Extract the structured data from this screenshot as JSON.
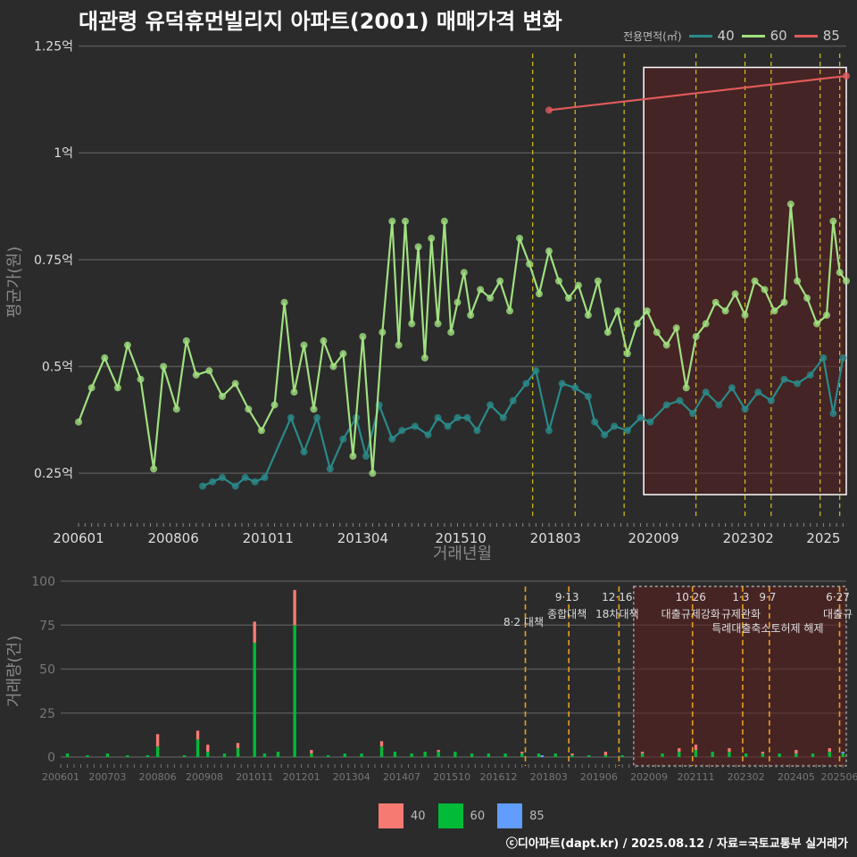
{
  "title": "대관령 유덕휴먼빌리지 아파트(2001) 매매가격 변화",
  "credit": "ⓒ디아파트(dapt.kr) / 2025.08.12 / 자료=국토교통부 실거래가",
  "colors": {
    "s40": "#2a8a8a",
    "s60": "#a0e080",
    "s85": "#e05a5a",
    "bar40": "#f77a72",
    "bar60": "#00ba38",
    "bar85": "#619cff",
    "policy": "#d4c21a",
    "policy_bottom": "#e8a020",
    "highlight": "#5a1f1f"
  },
  "legend_top": {
    "title": "전용면적(㎡)",
    "items": [
      "40",
      "60",
      "85"
    ]
  },
  "legend_bottom": {
    "items": [
      "40",
      "60",
      "85"
    ]
  },
  "chart_data": [
    {
      "type": "line",
      "ylabel": "평균가(원)",
      "xlabel": "거래년월",
      "ylim": [
        0.15,
        1.27
      ],
      "yticks": [
        0.25,
        0.5,
        0.75,
        1.0,
        1.25
      ],
      "ytick_labels": [
        "0.25억",
        "0.5억",
        "0.75억",
        "1억",
        "1.25억"
      ],
      "xlim": [
        "2006-01",
        "2025-08"
      ],
      "xtick_labels": [
        "200601",
        "200806",
        "201011",
        "201304",
        "201510",
        "201803",
        "202009",
        "202302",
        "2025"
      ],
      "policy_dates": [
        "2017-08",
        "2018-09",
        "2019-12",
        "2021-10",
        "2023-01",
        "2023-09",
        "2024-12",
        "2025-06"
      ],
      "highlight": [
        "2020-06",
        "2025-08"
      ],
      "series": [
        {
          "name": "40",
          "points": [
            [
              "2009-03",
              0.22
            ],
            [
              "2009-06",
              0.23
            ],
            [
              "2009-09",
              0.24
            ],
            [
              "2010-01",
              0.22
            ],
            [
              "2010-04",
              0.24
            ],
            [
              "2010-07",
              0.23
            ],
            [
              "2010-10",
              0.24
            ],
            [
              "2011-06",
              0.38
            ],
            [
              "2011-10",
              0.3
            ],
            [
              "2012-02",
              0.38
            ],
            [
              "2012-06",
              0.26
            ],
            [
              "2012-10",
              0.33
            ],
            [
              "2013-02",
              0.38
            ],
            [
              "2013-05",
              0.29
            ],
            [
              "2013-09",
              0.41
            ],
            [
              "2014-01",
              0.33
            ],
            [
              "2014-04",
              0.35
            ],
            [
              "2014-08",
              0.36
            ],
            [
              "2014-12",
              0.34
            ],
            [
              "2015-03",
              0.38
            ],
            [
              "2015-06",
              0.36
            ],
            [
              "2015-09",
              0.38
            ],
            [
              "2015-12",
              0.38
            ],
            [
              "2016-03",
              0.35
            ],
            [
              "2016-07",
              0.41
            ],
            [
              "2016-11",
              0.38
            ],
            [
              "2017-02",
              0.42
            ],
            [
              "2017-06",
              0.46
            ],
            [
              "2017-09",
              0.49
            ],
            [
              "2018-01",
              0.35
            ],
            [
              "2018-05",
              0.46
            ],
            [
              "2018-09",
              0.45
            ],
            [
              "2019-01",
              0.43
            ],
            [
              "2019-03",
              0.37
            ],
            [
              "2019-06",
              0.34
            ],
            [
              "2019-09",
              0.36
            ],
            [
              "2020-01",
              0.35
            ],
            [
              "2020-05",
              0.38
            ],
            [
              "2020-08",
              0.37
            ],
            [
              "2021-01",
              0.41
            ],
            [
              "2021-05",
              0.42
            ],
            [
              "2021-09",
              0.39
            ],
            [
              "2022-01",
              0.44
            ],
            [
              "2022-05",
              0.41
            ],
            [
              "2022-09",
              0.45
            ],
            [
              "2023-01",
              0.4
            ],
            [
              "2023-05",
              0.44
            ],
            [
              "2023-09",
              0.42
            ],
            [
              "2024-01",
              0.47
            ],
            [
              "2024-05",
              0.46
            ],
            [
              "2024-09",
              0.48
            ],
            [
              "2025-01",
              0.52
            ],
            [
              "2025-04",
              0.39
            ],
            [
              "2025-07",
              0.52
            ]
          ]
        },
        {
          "name": "60",
          "points": [
            [
              "2006-01",
              0.37
            ],
            [
              "2006-05",
              0.45
            ],
            [
              "2006-09",
              0.52
            ],
            [
              "2007-01",
              0.45
            ],
            [
              "2007-04",
              0.55
            ],
            [
              "2007-08",
              0.47
            ],
            [
              "2007-12",
              0.26
            ],
            [
              "2008-03",
              0.5
            ],
            [
              "2008-07",
              0.4
            ],
            [
              "2008-10",
              0.56
            ],
            [
              "2009-01",
              0.48
            ],
            [
              "2009-05",
              0.49
            ],
            [
              "2009-09",
              0.43
            ],
            [
              "2010-01",
              0.46
            ],
            [
              "2010-05",
              0.4
            ],
            [
              "2010-09",
              0.35
            ],
            [
              "2011-01",
              0.41
            ],
            [
              "2011-04",
              0.65
            ],
            [
              "2011-07",
              0.44
            ],
            [
              "2011-10",
              0.55
            ],
            [
              "2012-01",
              0.4
            ],
            [
              "2012-04",
              0.56
            ],
            [
              "2012-07",
              0.5
            ],
            [
              "2012-10",
              0.53
            ],
            [
              "2013-01",
              0.29
            ],
            [
              "2013-04",
              0.57
            ],
            [
              "2013-07",
              0.25
            ],
            [
              "2013-10",
              0.58
            ],
            [
              "2014-01",
              0.84
            ],
            [
              "2014-03",
              0.55
            ],
            [
              "2014-05",
              0.84
            ],
            [
              "2014-07",
              0.6
            ],
            [
              "2014-09",
              0.78
            ],
            [
              "2014-11",
              0.52
            ],
            [
              "2015-01",
              0.8
            ],
            [
              "2015-03",
              0.6
            ],
            [
              "2015-05",
              0.84
            ],
            [
              "2015-07",
              0.58
            ],
            [
              "2015-09",
              0.65
            ],
            [
              "2015-11",
              0.72
            ],
            [
              "2016-01",
              0.62
            ],
            [
              "2016-04",
              0.68
            ],
            [
              "2016-07",
              0.66
            ],
            [
              "2016-10",
              0.7
            ],
            [
              "2017-01",
              0.63
            ],
            [
              "2017-04",
              0.8
            ],
            [
              "2017-07",
              0.74
            ],
            [
              "2017-10",
              0.67
            ],
            [
              "2018-01",
              0.77
            ],
            [
              "2018-04",
              0.7
            ],
            [
              "2018-07",
              0.66
            ],
            [
              "2018-10",
              0.69
            ],
            [
              "2019-01",
              0.62
            ],
            [
              "2019-04",
              0.7
            ],
            [
              "2019-07",
              0.58
            ],
            [
              "2019-10",
              0.63
            ],
            [
              "2020-01",
              0.53
            ],
            [
              "2020-04",
              0.6
            ],
            [
              "2020-07",
              0.63
            ],
            [
              "2020-10",
              0.58
            ],
            [
              "2021-01",
              0.55
            ],
            [
              "2021-04",
              0.59
            ],
            [
              "2021-07",
              0.45
            ],
            [
              "2021-10",
              0.57
            ],
            [
              "2022-01",
              0.6
            ],
            [
              "2022-04",
              0.65
            ],
            [
              "2022-07",
              0.63
            ],
            [
              "2022-10",
              0.67
            ],
            [
              "2023-01",
              0.62
            ],
            [
              "2023-04",
              0.7
            ],
            [
              "2023-07",
              0.68
            ],
            [
              "2023-10",
              0.63
            ],
            [
              "2024-01",
              0.65
            ],
            [
              "2024-03",
              0.88
            ],
            [
              "2024-05",
              0.7
            ],
            [
              "2024-08",
              0.66
            ],
            [
              "2024-11",
              0.6
            ],
            [
              "2025-02",
              0.62
            ],
            [
              "2025-04",
              0.84
            ],
            [
              "2025-06",
              0.72
            ],
            [
              "2025-08",
              0.7
            ]
          ]
        },
        {
          "name": "85",
          "points": [
            [
              "2018-01",
              1.1
            ],
            [
              "2025-08",
              1.18
            ]
          ]
        }
      ]
    },
    {
      "type": "bar",
      "ylabel": "거래량(건)",
      "ylim": [
        0,
        100
      ],
      "yticks": [
        0,
        25,
        50,
        75,
        100
      ],
      "xtick_labels": [
        "200601",
        "200703",
        "200806",
        "200908",
        "201011",
        "201201",
        "201304",
        "201407",
        "201510",
        "201612",
        "201803",
        "201906",
        "202009",
        "202111",
        "202302",
        "202405",
        "202506"
      ],
      "stacked": true,
      "series": [
        {
          "name": "60",
          "values": [
            [
              "2006-03",
              2
            ],
            [
              "2006-09",
              1
            ],
            [
              "2007-03",
              2
            ],
            [
              "2007-09",
              1
            ],
            [
              "2008-03",
              1
            ],
            [
              "2008-06",
              6
            ],
            [
              "2009-02",
              1
            ],
            [
              "2009-06",
              10
            ],
            [
              "2009-09",
              3
            ],
            [
              "2010-02",
              2
            ],
            [
              "2010-06",
              5
            ],
            [
              "2010-11",
              65
            ],
            [
              "2011-02",
              2
            ],
            [
              "2011-06",
              3
            ],
            [
              "2011-11",
              75
            ],
            [
              "2012-04",
              2
            ],
            [
              "2012-09",
              1
            ],
            [
              "2013-02",
              2
            ],
            [
              "2013-07",
              2
            ],
            [
              "2014-01",
              6
            ],
            [
              "2014-05",
              3
            ],
            [
              "2014-10",
              2
            ],
            [
              "2015-02",
              3
            ],
            [
              "2015-06",
              3
            ],
            [
              "2015-11",
              3
            ],
            [
              "2016-04",
              2
            ],
            [
              "2016-09",
              2
            ],
            [
              "2017-02",
              2
            ],
            [
              "2017-07",
              2
            ],
            [
              "2017-12",
              2
            ],
            [
              "2018-05",
              2
            ],
            [
              "2018-10",
              1
            ],
            [
              "2019-03",
              1
            ],
            [
              "2019-08",
              1
            ],
            [
              "2020-01",
              1
            ],
            [
              "2020-07",
              2
            ],
            [
              "2021-01",
              2
            ],
            [
              "2021-06",
              3
            ],
            [
              "2021-11",
              4
            ],
            [
              "2022-04",
              3
            ],
            [
              "2022-09",
              3
            ],
            [
              "2023-02",
              2
            ],
            [
              "2023-07",
              2
            ],
            [
              "2023-12",
              2
            ],
            [
              "2024-05",
              2
            ],
            [
              "2024-10",
              2
            ],
            [
              "2025-03",
              3
            ],
            [
              "2025-07",
              2
            ]
          ]
        },
        {
          "name": "40",
          "values": [
            [
              "2008-06",
              7
            ],
            [
              "2009-06",
              5
            ],
            [
              "2009-09",
              4
            ],
            [
              "2010-06",
              3
            ],
            [
              "2010-11",
              12
            ],
            [
              "2011-11",
              20
            ],
            [
              "2012-04",
              2
            ],
            [
              "2014-01",
              3
            ],
            [
              "2015-06",
              1
            ],
            [
              "2017-07",
              1
            ],
            [
              "2018-10",
              1
            ],
            [
              "2019-08",
              2
            ],
            [
              "2020-07",
              1
            ],
            [
              "2021-06",
              2
            ],
            [
              "2021-11",
              3
            ],
            [
              "2022-09",
              2
            ],
            [
              "2023-07",
              1
            ],
            [
              "2024-05",
              2
            ],
            [
              "2025-03",
              2
            ]
          ]
        },
        {
          "name": "85",
          "values": [
            [
              "2018-01",
              1
            ],
            [
              "2025-07",
              1
            ]
          ]
        }
      ],
      "policies": [
        {
          "date": "2017-08",
          "label1": "8·2 대책",
          "label2": ""
        },
        {
          "date": "2018-09",
          "label1": "9·13",
          "label2": "종합대책"
        },
        {
          "date": "2019-12",
          "label1": "12·16",
          "label2": "18차대책"
        },
        {
          "date": "2021-10",
          "label1": "10·26",
          "label2": "대출규제강화"
        },
        {
          "date": "2023-01",
          "label1": "1·3",
          "label2": "규제완화"
        },
        {
          "date": "2023-09",
          "label1": "9·7",
          "label2": "특례대출축소토허제 해제"
        },
        {
          "date": "2025-06",
          "label1": "6·27",
          "label2": "대출규"
        }
      ],
      "highlight": [
        "2020-06",
        "2025-08"
      ]
    }
  ]
}
